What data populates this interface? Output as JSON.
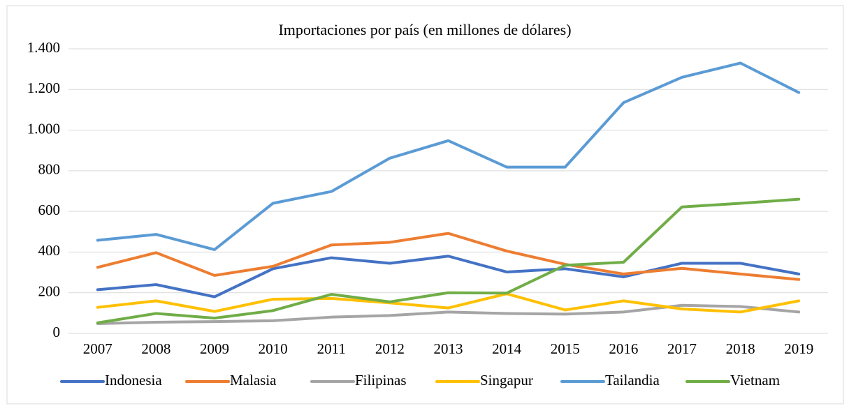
{
  "chart_data": {
    "type": "line",
    "title": "Importaciones por país (en millones de dólares)",
    "categories": [
      "2007",
      "2008",
      "2009",
      "2010",
      "2011",
      "2012",
      "2013",
      "2014",
      "2015",
      "2016",
      "2017",
      "2018",
      "2019"
    ],
    "series": [
      {
        "name": "Indonesia",
        "color": "#4472c4",
        "values": [
          215,
          240,
          180,
          318,
          372,
          345,
          380,
          302,
          318,
          278,
          345,
          345,
          292
        ]
      },
      {
        "name": "Malasia",
        "color": "#ed7d31",
        "values": [
          325,
          397,
          285,
          330,
          435,
          448,
          492,
          405,
          340,
          292,
          320,
          292,
          265
        ]
      },
      {
        "name": "Filipinas",
        "color": "#a5a5a5",
        "values": [
          48,
          55,
          58,
          62,
          80,
          88,
          105,
          98,
          95,
          105,
          138,
          132,
          105
        ]
      },
      {
        "name": "Singapur",
        "color": "#ffc000",
        "values": [
          128,
          160,
          108,
          168,
          172,
          150,
          125,
          195,
          115,
          160,
          120,
          105,
          160
        ]
      },
      {
        "name": "Tailandia",
        "color": "#5b9bd5",
        "values": [
          458,
          487,
          412,
          640,
          698,
          862,
          948,
          818,
          818,
          1135,
          1260,
          1330,
          1185
        ]
      },
      {
        "name": "Vietnam",
        "color": "#70ad47",
        "values": [
          52,
          98,
          75,
          112,
          192,
          155,
          200,
          198,
          335,
          350,
          622,
          640,
          660
        ]
      }
    ],
    "ylim": [
      0,
      1400
    ],
    "yticks": [
      0,
      200,
      400,
      600,
      800,
      {
        "value": 1000,
        "label": "1.000"
      },
      {
        "value": 1200,
        "label": "1.200"
      },
      {
        "value": 1400,
        "label": "1.400"
      }
    ],
    "grid": true,
    "legend": "bottom"
  }
}
